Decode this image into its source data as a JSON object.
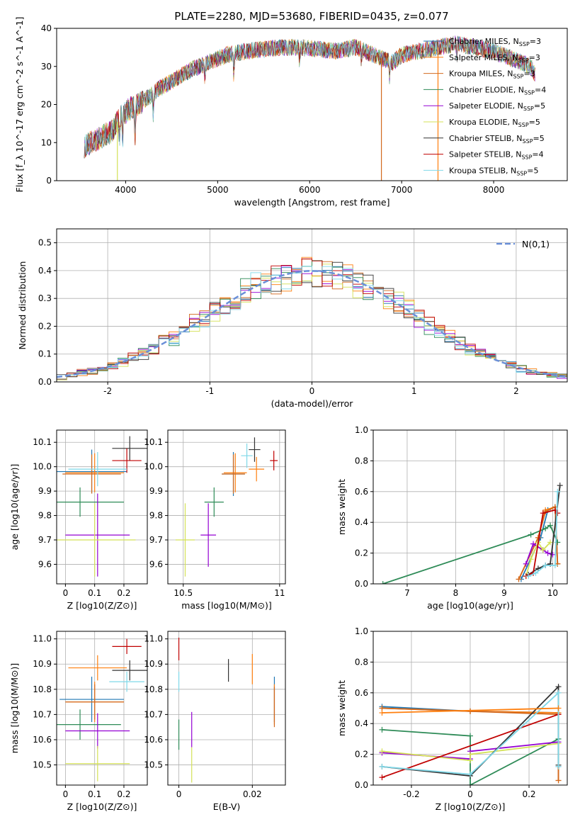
{
  "title": "PLATE=2280, MJD=53680, FIBERID=0435, z=0.077",
  "series": [
    {
      "name": "Chabrier MILES",
      "nssp": 3,
      "color": "#1f77b4"
    },
    {
      "name": "Salpeter MILES",
      "nssp": 3,
      "color": "#ff7f0e"
    },
    {
      "name": "Kroupa MILES",
      "nssp": 3,
      "color": "#d2691e"
    },
    {
      "name": "Chabrier ELODIE",
      "nssp": 4,
      "color": "#2e8b57"
    },
    {
      "name": "Salpeter ELODIE",
      "nssp": 5,
      "color": "#9400d3"
    },
    {
      "name": "Kroupa ELODIE",
      "nssp": 5,
      "color": "#d4e157"
    },
    {
      "name": "Chabrier STELIB",
      "nssp": 5,
      "color": "#333333"
    },
    {
      "name": "Salpeter STELIB",
      "nssp": 4,
      "color": "#c00000"
    },
    {
      "name": "Kroupa STELIB",
      "nssp": 5,
      "color": "#7fd8e8"
    }
  ],
  "chart_data": [
    {
      "type": "line",
      "title": "PLATE=2280, MJD=53680, FIBERID=0435, z=0.077",
      "xlabel": "wavelength [Angstrom, rest frame]",
      "ylabel": "Flux [f_λ 10^-17 erg cm^-2 s^-1 A^-1]",
      "xlim": [
        3250,
        8800
      ],
      "ylim": [
        0,
        40
      ],
      "xticks": [
        4000,
        5000,
        6000,
        7000,
        8000
      ],
      "yticks": [
        0,
        10,
        20,
        30,
        40
      ],
      "legend": "upper-right",
      "continuum": [
        [
          3550,
          9
        ],
        [
          3700,
          11
        ],
        [
          3850,
          13
        ],
        [
          3950,
          17
        ],
        [
          4050,
          19
        ],
        [
          4200,
          21
        ],
        [
          4350,
          24
        ],
        [
          4500,
          26
        ],
        [
          4700,
          29
        ],
        [
          4900,
          31
        ],
        [
          5100,
          33
        ],
        [
          5300,
          34
        ],
        [
          5500,
          34.5
        ],
        [
          5700,
          35
        ],
        [
          5900,
          35
        ],
        [
          6100,
          34.5
        ],
        [
          6300,
          34
        ],
        [
          6500,
          35
        ],
        [
          6700,
          33
        ],
        [
          6900,
          31
        ],
        [
          7000,
          33
        ],
        [
          7200,
          34
        ],
        [
          7400,
          35
        ],
        [
          7600,
          36
        ],
        [
          7800,
          35
        ],
        [
          8000,
          34
        ],
        [
          8200,
          32
        ],
        [
          8400,
          30
        ],
        [
          8450,
          28
        ]
      ],
      "absorption_features": [
        [
          3933,
          6
        ],
        [
          3968,
          8
        ],
        [
          4102,
          10
        ],
        [
          4300,
          6
        ],
        [
          4861,
          4
        ],
        [
          5175,
          6
        ],
        [
          5890,
          4
        ],
        [
          6563,
          3
        ],
        [
          6870,
          5
        ],
        [
          7600,
          4
        ]
      ],
      "spikes": [
        {
          "x": 3910,
          "y": 0,
          "series": "Kroupa ELODIE"
        },
        {
          "x": 6780,
          "y": 0,
          "series": "Kroupa MILES"
        },
        {
          "x": 7395,
          "y": 0,
          "series": "Salpeter MILES"
        }
      ]
    },
    {
      "type": "histogram",
      "xlabel": "(data-model)/error",
      "ylabel": "Normed distribution",
      "xlim": [
        -2.5,
        2.5
      ],
      "ylim": [
        0,
        0.55
      ],
      "xticks": [
        -2,
        -1,
        0,
        1,
        2
      ],
      "yticks": [
        0.0,
        0.1,
        0.2,
        0.3,
        0.4,
        0.5
      ],
      "bin_width": 0.1,
      "reference": {
        "name": "N(0,1)",
        "function": "normal(0,1)",
        "style": "dashed"
      },
      "legend": "upper-right"
    },
    {
      "type": "scatter",
      "xlabel": "Z [log10(Z/Z⊙)]",
      "ylabel": "age [log10(age/yr)]",
      "xlim": [
        -0.03,
        0.28
      ],
      "ylim": [
        9.52,
        10.15
      ],
      "xticks": [
        0.0,
        0.1,
        0.2
      ],
      "yticks": [
        9.6,
        9.7,
        9.8,
        9.9,
        10.0,
        10.1
      ],
      "points": [
        {
          "series": "Chabrier MILES",
          "x": 0.09,
          "y": 9.98,
          "xerr": 0.12,
          "yerr": 0.09
        },
        {
          "series": "Salpeter MILES",
          "x": 0.1,
          "y": 9.975,
          "xerr": 0.1,
          "yerr": 0.08
        },
        {
          "series": "Kroupa MILES",
          "x": 0.09,
          "y": 9.97,
          "xerr": 0.1,
          "yerr": 0.08
        },
        {
          "series": "Chabrier ELODIE",
          "x": 0.05,
          "y": 9.855,
          "xerr": 0.15,
          "yerr": 0.06
        },
        {
          "series": "Salpeter ELODIE",
          "x": 0.11,
          "y": 9.72,
          "xerr": 0.11,
          "yerr": 0.17
        },
        {
          "series": "Kroupa ELODIE",
          "x": 0.1,
          "y": 9.7,
          "xerr": 0.14,
          "yerr": 0.15
        },
        {
          "series": "Chabrier STELIB",
          "x": 0.22,
          "y": 10.075,
          "xerr": 0.06,
          "yerr": 0.05
        },
        {
          "series": "Salpeter STELIB",
          "x": 0.21,
          "y": 10.025,
          "xerr": 0.05,
          "yerr": 0.05
        },
        {
          "series": "Kroupa STELIB",
          "x": 0.11,
          "y": 9.99,
          "xerr": 0.1,
          "yerr": 0.07
        }
      ]
    },
    {
      "type": "scatter",
      "xlabel": "mass [log10(M/M⊙)]",
      "ylabel": "",
      "xlim": [
        10.42,
        11.03
      ],
      "ylim": [
        9.52,
        10.15
      ],
      "xticks": [
        10.5,
        11.0
      ],
      "yticks": [
        9.6,
        9.7,
        9.8,
        9.9,
        10.0,
        10.1
      ],
      "points": [
        {
          "series": "Chabrier MILES",
          "x": 10.76,
          "y": 9.97,
          "xerr": 0.06,
          "yerr": 0.09
        },
        {
          "series": "Salpeter MILES",
          "x": 10.77,
          "y": 9.975,
          "xerr": 0.06,
          "yerr": 0.08
        },
        {
          "series": "Kroupa MILES",
          "x": 10.76,
          "y": 9.97,
          "xerr": 0.06,
          "yerr": 0.08
        },
        {
          "series": "Chabrier ELODIE",
          "x": 10.66,
          "y": 9.855,
          "xerr": 0.05,
          "yerr": 0.06
        },
        {
          "series": "Salpeter ELODIE",
          "x": 10.63,
          "y": 9.72,
          "xerr": 0.04,
          "yerr": 0.13
        },
        {
          "series": "Kroupa ELODIE",
          "x": 10.51,
          "y": 9.7,
          "xerr": 0.05,
          "yerr": 0.15
        },
        {
          "series": "Chabrier STELIB",
          "x": 10.87,
          "y": 10.07,
          "xerr": 0.03,
          "yerr": 0.05
        },
        {
          "series": "Salpeter STELIB",
          "x": 10.97,
          "y": 10.025,
          "xerr": 0.02,
          "yerr": 0.04
        },
        {
          "series": "Kroupa STELIB",
          "x": 10.83,
          "y": 10.045,
          "xerr": 0.03,
          "yerr": 0.05
        },
        {
          "series": "Salpeter MILES",
          "x": 10.88,
          "y": 9.99,
          "xerr": 0.04,
          "yerr": 0.05
        }
      ]
    },
    {
      "type": "line",
      "xlabel": "age [log10(age/yr)]",
      "ylabel": "mass weight",
      "xlim": [
        6.3,
        10.3
      ],
      "ylim": [
        0,
        1.0
      ],
      "xticks": [
        7,
        8,
        9,
        10
      ],
      "yticks": [
        0.0,
        0.2,
        0.4,
        0.6,
        0.8,
        1.0
      ],
      "series": [
        {
          "name": "Chabrier MILES",
          "x": [
            9.35,
            9.75,
            9.9,
            10.05,
            10.1
          ],
          "y": [
            0.03,
            0.3,
            0.48,
            0.5,
            0.13
          ]
        },
        {
          "name": "Salpeter MILES",
          "x": [
            9.3,
            9.7,
            9.85,
            10.05,
            10.1
          ],
          "y": [
            0.03,
            0.3,
            0.48,
            0.5,
            0.13
          ]
        },
        {
          "name": "Kroupa MILES",
          "x": [
            9.3,
            9.7,
            9.85,
            10.05,
            10.1
          ],
          "y": [
            0.03,
            0.3,
            0.47,
            0.5,
            0.13
          ]
        },
        {
          "name": "Chabrier ELODIE",
          "x": [
            6.5,
            9.55,
            9.85,
            9.95,
            10.1
          ],
          "y": [
            0.0,
            0.32,
            0.36,
            0.38,
            0.27
          ]
        },
        {
          "name": "Salpeter ELODIE",
          "x": [
            9.45,
            9.6,
            9.8,
            9.9,
            10.0
          ],
          "y": [
            0.13,
            0.26,
            0.22,
            0.2,
            0.19
          ]
        },
        {
          "name": "Kroupa ELODIE",
          "x": [
            9.45,
            9.55,
            9.7,
            9.8,
            9.95
          ],
          "y": [
            0.05,
            0.16,
            0.27,
            0.22,
            0.27
          ]
        },
        {
          "name": "Chabrier STELIB",
          "x": [
            9.5,
            9.7,
            9.85,
            9.95,
            10.15
          ],
          "y": [
            0.06,
            0.1,
            0.12,
            0.13,
            0.64
          ]
        },
        {
          "name": "Salpeter STELIB",
          "x": [
            9.45,
            9.6,
            9.8,
            10.05,
            10.1
          ],
          "y": [
            0.05,
            0.07,
            0.46,
            0.48,
            0.46
          ]
        },
        {
          "name": "Kroupa STELIB",
          "x": [
            9.5,
            9.65,
            9.85,
            10.05,
            10.1
          ],
          "y": [
            0.05,
            0.07,
            0.12,
            0.12,
            0.6
          ]
        }
      ]
    },
    {
      "type": "scatter",
      "xlabel": "Z [log10(Z/Z⊙)]",
      "ylabel": "mass [log10(M/M⊙)]",
      "xlim": [
        -0.03,
        0.28
      ],
      "ylim": [
        10.42,
        11.03
      ],
      "xticks": [
        0.0,
        0.1,
        0.2
      ],
      "yticks": [
        10.5,
        10.6,
        10.7,
        10.8,
        10.9,
        11.0
      ],
      "points": [
        {
          "series": "Chabrier MILES",
          "x": 0.09,
          "y": 10.76,
          "xerr": 0.11,
          "yerr": 0.09
        },
        {
          "series": "Salpeter MILES",
          "x": 0.1,
          "y": 10.75,
          "xerr": 0.1,
          "yerr": 0.08
        },
        {
          "series": "Kroupa MILES",
          "x": 0.1,
          "y": 10.75,
          "xerr": 0.1,
          "yerr": 0.07
        },
        {
          "series": "Chabrier ELODIE",
          "x": 0.05,
          "y": 10.66,
          "xerr": 0.14,
          "yerr": 0.06
        },
        {
          "series": "Salpeter ELODIE",
          "x": 0.11,
          "y": 10.635,
          "xerr": 0.11,
          "yerr": 0.07
        },
        {
          "series": "Kroupa ELODIE",
          "x": 0.11,
          "y": 10.505,
          "xerr": 0.11,
          "yerr": 0.07
        },
        {
          "series": "Chabrier STELIB",
          "x": 0.22,
          "y": 10.875,
          "xerr": 0.06,
          "yerr": 0.04
        },
        {
          "series": "Salpeter STELIB",
          "x": 0.21,
          "y": 10.97,
          "xerr": 0.05,
          "yerr": 0.03
        },
        {
          "series": "Kroupa STELIB",
          "x": 0.21,
          "y": 10.83,
          "xerr": 0.06,
          "yerr": 0.04
        },
        {
          "series": "Salpeter MILES",
          "x": 0.11,
          "y": 10.885,
          "xerr": 0.1,
          "yerr": 0.05
        }
      ]
    },
    {
      "type": "scatter",
      "xlabel": "E(B-V)",
      "ylabel": "",
      "xlim": [
        -0.003,
        0.029
      ],
      "ylim": [
        10.42,
        11.03
      ],
      "xticks": [
        0.0,
        0.02
      ],
      "yticks": [
        10.5,
        10.6,
        10.7,
        10.8,
        10.9,
        11.0
      ],
      "points": [
        {
          "series": "Chabrier MILES",
          "x": 0.026,
          "y": 10.76,
          "yerr": 0.09
        },
        {
          "series": "Salpeter MILES",
          "x": 0.026,
          "y": 10.74,
          "yerr": 0.08
        },
        {
          "series": "Kroupa MILES",
          "x": 0.026,
          "y": 10.73,
          "yerr": 0.08
        },
        {
          "series": "Chabrier ELODIE",
          "x": 0.0,
          "y": 10.62,
          "yerr": 0.06
        },
        {
          "series": "Salpeter ELODIE",
          "x": 0.0035,
          "y": 10.64,
          "yerr": 0.07
        },
        {
          "series": "Kroupa ELODIE",
          "x": 0.0035,
          "y": 10.5,
          "yerr": 0.07
        },
        {
          "series": "Chabrier STELIB",
          "x": 0.0135,
          "y": 10.875,
          "yerr": 0.045
        },
        {
          "series": "Salpeter STELIB",
          "x": 0.0,
          "y": 10.96,
          "yerr": 0.045
        },
        {
          "series": "Kroupa STELIB",
          "x": 0.0,
          "y": 10.83,
          "yerr": 0.04
        },
        {
          "series": "Salpeter MILES",
          "x": 0.02,
          "y": 10.88,
          "yerr": 0.06
        }
      ]
    },
    {
      "type": "line",
      "xlabel": "Z [log10(Z/Z⊙)]",
      "ylabel": "mass weight",
      "xlim": [
        -0.33,
        0.33
      ],
      "ylim": [
        0,
        1.0
      ],
      "xticks": [
        -0.2,
        0.0,
        0.2
      ],
      "yticks": [
        0.0,
        0.2,
        0.4,
        0.6,
        0.8,
        1.0
      ],
      "series": [
        {
          "name": "Chabrier MILES",
          "x": [
            -0.3,
            0.0,
            0.3,
            0.3
          ],
          "y": [
            0.51,
            0.48,
            0.47,
            0.12
          ]
        },
        {
          "name": "Salpeter MILES",
          "x": [
            -0.3,
            0.0,
            0.3,
            0.3
          ],
          "y": [
            0.5,
            0.48,
            0.47,
            0.03
          ]
        },
        {
          "name": "Kroupa MILES",
          "x": [
            -0.3,
            0.0,
            0.3,
            0.3
          ],
          "y": [
            0.5,
            0.48,
            0.46,
            0.03
          ]
        },
        {
          "name": "Chabrier ELODIE",
          "x": [
            -0.3,
            0.0,
            0.0,
            0.3
          ],
          "y": [
            0.36,
            0.32,
            0.0,
            0.3
          ]
        },
        {
          "name": "Salpeter ELODIE",
          "x": [
            -0.3,
            0.0,
            0.0,
            0.3
          ],
          "y": [
            0.21,
            0.17,
            0.22,
            0.28
          ]
        },
        {
          "name": "Kroupa ELODIE",
          "x": [
            -0.3,
            0.0,
            0.0,
            0.3
          ],
          "y": [
            0.22,
            0.16,
            0.2,
            0.27
          ]
        },
        {
          "name": "Chabrier STELIB",
          "x": [
            -0.3,
            0.0,
            0.3,
            0.3
          ],
          "y": [
            0.12,
            0.06,
            0.64,
            0.13
          ]
        },
        {
          "name": "Salpeter STELIB",
          "x": [
            -0.3,
            0.3,
            0.3
          ],
          "y": [
            0.05,
            0.46,
            0.46
          ]
        },
        {
          "name": "Kroupa STELIB",
          "x": [
            -0.3,
            0.0,
            0.3,
            0.3
          ],
          "y": [
            0.12,
            0.07,
            0.6,
            0.12
          ]
        },
        {
          "name": "Salpeter MILES",
          "x": [
            -0.3,
            0.3
          ],
          "y": [
            0.47,
            0.5
          ]
        }
      ]
    }
  ]
}
